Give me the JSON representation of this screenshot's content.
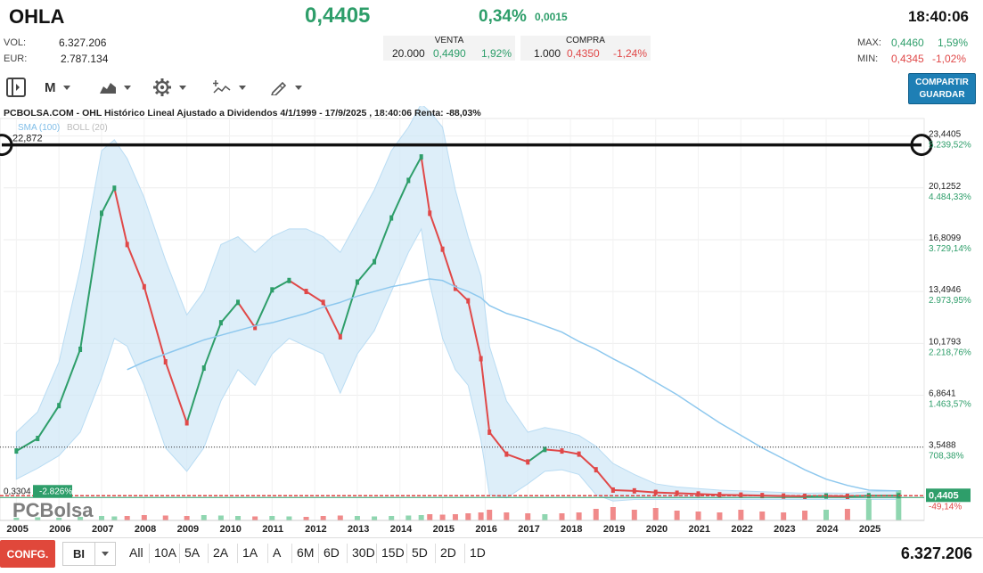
{
  "header": {
    "ticker": "OHLA",
    "price": "0,4405",
    "change_pct": "0,34%",
    "change_abs": "0,0015",
    "time": "18:40:06"
  },
  "stats": {
    "vol_label": "VOL:",
    "vol_value": "6.327.206",
    "eur_label": "EUR:",
    "eur_value": "2.787.134",
    "max_label": "MAX:",
    "max_value": "0,4460",
    "max_pct": "1,59%",
    "min_label": "MIN:",
    "min_value": "0,4345",
    "min_pct": "-1,02%"
  },
  "quotes": {
    "venta": {
      "title": "VENTA",
      "qty": "20.000",
      "price": "0,4490",
      "pct": "1,92%"
    },
    "compra": {
      "title": "COMPRA",
      "qty": "1.000",
      "price": "0,4350",
      "pct": "-1,24%"
    }
  },
  "toolbar": {
    "period": "M",
    "share_line1": "COMPARTIR",
    "share_line2": "GUARDAR"
  },
  "chart_data": {
    "type": "line",
    "title": "PCBOLSA.COM - OHL Histórico Lineal Ajustado a Dividendos 4/1/1999 - 17/9/2025 , 18:40:06 Renta: -88,03%",
    "legend": [
      "SMA (100)",
      "BOLL (20)"
    ],
    "watermark": "PCBolsa",
    "price_axis": [
      {
        "price": "23,4405",
        "pct": "5.239,52%",
        "value": 23.4405
      },
      {
        "price": "20,1252",
        "pct": "4.484,33%",
        "value": 20.1252
      },
      {
        "price": "16,8099",
        "pct": "3.729,14%",
        "value": 16.8099
      },
      {
        "price": "13,4946",
        "pct": "2.973,95%",
        "value": 13.4946
      },
      {
        "price": "10,1793",
        "pct": "2.218,76%",
        "value": 10.1793
      },
      {
        "price": "6,8641",
        "pct": "1.463,57%",
        "value": 6.8641
      },
      {
        "price": "3,5488",
        "pct": "708,38%",
        "value": 3.5488
      }
    ],
    "current_price": {
      "label": "0,4405",
      "pct": "-49,14%",
      "value": 0.4405
    },
    "hline": {
      "label": "22,872",
      "value": 22.872
    },
    "base_line": {
      "label": "0,3304",
      "pct": "-2.826%",
      "value": 0.3304
    },
    "x_labels": [
      "2005",
      "2006",
      "2007",
      "2008",
      "2009",
      "2010",
      "2011",
      "2012",
      "2013",
      "2014",
      "2015",
      "2016",
      "2017",
      "2018",
      "2019",
      "2020",
      "2021",
      "2022",
      "2023",
      "2024",
      "2025"
    ],
    "x": [
      2005.0,
      2005.5,
      2006.0,
      2006.5,
      2007.0,
      2007.3,
      2007.6,
      2008.0,
      2008.5,
      2009.0,
      2009.4,
      2009.8,
      2010.2,
      2010.6,
      2011.0,
      2011.4,
      2011.8,
      2012.2,
      2012.6,
      2013.0,
      2013.4,
      2013.8,
      2014.2,
      2014.5,
      2014.7,
      2015.0,
      2015.3,
      2015.6,
      2015.9,
      2016.1,
      2016.5,
      2017.0,
      2017.4,
      2017.8,
      2018.2,
      2018.6,
      2019.0,
      2019.5,
      2020.0,
      2020.5,
      2021.0,
      2021.5,
      2022.0,
      2022.5,
      2023.0,
      2023.5,
      2024.0,
      2024.5,
      2025.0,
      2025.7
    ],
    "close": [
      3.3,
      4.1,
      6.2,
      9.8,
      18.5,
      20.1,
      16.5,
      13.8,
      9.0,
      5.1,
      8.6,
      11.5,
      12.8,
      11.2,
      13.6,
      14.2,
      13.5,
      12.8,
      10.6,
      14.1,
      15.4,
      18.2,
      20.6,
      22.1,
      18.5,
      16.2,
      13.7,
      12.9,
      9.2,
      4.5,
      3.1,
      2.6,
      3.4,
      3.3,
      3.1,
      2.1,
      0.8,
      0.75,
      0.65,
      0.6,
      0.55,
      0.5,
      0.48,
      0.45,
      0.42,
      0.4,
      0.42,
      0.4,
      0.44,
      0.4405
    ],
    "sma_100": [
      null,
      null,
      null,
      null,
      null,
      null,
      8.5,
      9.0,
      9.5,
      10.0,
      10.4,
      10.7,
      11.0,
      11.3,
      11.5,
      11.8,
      12.1,
      12.5,
      12.8,
      13.2,
      13.5,
      13.8,
      14.0,
      14.2,
      14.3,
      14.2,
      13.8,
      13.5,
      13.1,
      12.6,
      12.1,
      11.7,
      11.3,
      10.9,
      10.3,
      9.8,
      9.2,
      8.5,
      7.7,
      6.9,
      6.0,
      5.1,
      4.3,
      3.5,
      2.8,
      2.1,
      1.5,
      1.1,
      0.8,
      0.75
    ],
    "boll_upper": [
      4.5,
      5.8,
      9.0,
      15.0,
      22.5,
      23.2,
      22.0,
      19.5,
      15.5,
      12.0,
      13.5,
      16.5,
      17.0,
      16.0,
      17.0,
      17.5,
      17.5,
      17.0,
      16.0,
      18.0,
      20.0,
      22.5,
      24.0,
      25.5,
      25.0,
      24.0,
      20.0,
      17.0,
      14.5,
      10.0,
      6.5,
      4.5,
      4.8,
      4.6,
      4.3,
      3.6,
      2.5,
      1.8,
      1.2,
      1.0,
      0.9,
      0.8,
      0.75,
      0.7,
      0.65,
      0.6,
      0.62,
      0.6,
      0.7,
      0.75
    ],
    "boll_lower": [
      1.5,
      2.2,
      3.0,
      4.5,
      8.0,
      10.5,
      10.0,
      7.5,
      3.5,
      2.0,
      3.5,
      6.5,
      8.5,
      7.5,
      9.5,
      10.5,
      10.0,
      9.5,
      7.0,
      9.5,
      11.0,
      13.5,
      16.0,
      17.5,
      14.0,
      10.5,
      8.5,
      7.5,
      4.0,
      0.5,
      0.3,
      1.2,
      2.0,
      2.1,
      1.8,
      0.5,
      0.1,
      0.2,
      0.2,
      0.2,
      0.2,
      0.2,
      0.2,
      0.2,
      0.2,
      0.2,
      0.2,
      0.2,
      0.2,
      0.2
    ],
    "volume": [
      0.3,
      0.35,
      0.3,
      0.4,
      0.5,
      0.45,
      0.5,
      0.6,
      0.55,
      0.5,
      0.6,
      0.55,
      0.5,
      0.45,
      0.5,
      0.45,
      0.4,
      0.5,
      0.55,
      0.5,
      0.45,
      0.5,
      0.55,
      0.6,
      0.7,
      0.65,
      0.7,
      0.8,
      0.9,
      1.2,
      0.9,
      0.8,
      0.7,
      0.8,
      0.9,
      1.3,
      1.5,
      1.2,
      1.4,
      1.1,
      1.0,
      0.9,
      1.2,
      1.0,
      0.9,
      1.1,
      1.2,
      1.3,
      2.4,
      3.4
    ],
    "xlim": [
      2004.7,
      2026.3
    ],
    "ylim": [
      0,
      24.5
    ],
    "grid": true
  },
  "bottom": {
    "config_label": "CONFG.",
    "bi_label": "BI",
    "ranges": [
      "All",
      "10A",
      "5A",
      "2A",
      "1A",
      "A",
      "6M",
      "6D",
      "30D",
      "15D",
      "5D",
      "2D",
      "1D"
    ],
    "volume": "6.327.206"
  }
}
